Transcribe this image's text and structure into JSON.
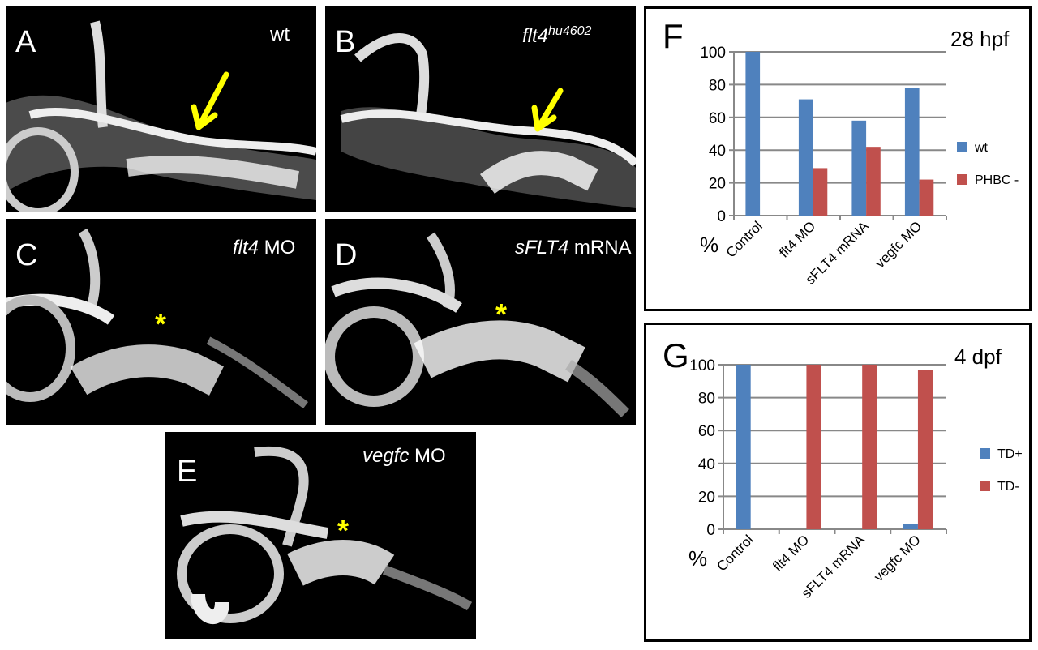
{
  "panels": {
    "A": {
      "letter": "A",
      "title": "wt"
    },
    "B": {
      "letter": "B",
      "title_main": "flt4",
      "title_sup": "hu4602"
    },
    "C": {
      "letter": "C",
      "title_ital": "flt4",
      "title_rest": " MO"
    },
    "D": {
      "letter": "D",
      "title_ital": "sFLT4",
      "title_rest": " mRNA"
    },
    "E": {
      "letter": "E",
      "title_ital": "vegfc",
      "title_rest": " MO"
    }
  },
  "markers": {
    "asterisk": "*"
  },
  "colors": {
    "blue": "#4F81BD",
    "red": "#C0504D",
    "arrow": "#FFFF00"
  },
  "chart_data": [
    {
      "type": "bar",
      "panel_letter": "F",
      "title": "28 hpf",
      "ylabel": "%",
      "ylim": [
        0,
        100
      ],
      "yticks": [
        0,
        20,
        40,
        60,
        80,
        100
      ],
      "categories": [
        "Control",
        "flt4 MO",
        "sFLT4 mRNA",
        "vegfc MO"
      ],
      "series": [
        {
          "name": "wt",
          "color": "#4F81BD",
          "values": [
            100,
            71,
            58,
            78
          ]
        },
        {
          "name": "PHBC -",
          "color": "#C0504D",
          "values": [
            0,
            29,
            42,
            22
          ]
        }
      ]
    },
    {
      "type": "bar",
      "panel_letter": "G",
      "title": "4 dpf",
      "ylabel": "%",
      "ylim": [
        0,
        100
      ],
      "yticks": [
        0,
        20,
        40,
        60,
        80,
        100
      ],
      "categories": [
        "Control",
        "flt4 MO",
        "sFLT4 mRNA",
        "vegfc MO"
      ],
      "series": [
        {
          "name": "TD+",
          "color": "#4F81BD",
          "values": [
            100,
            0,
            0,
            3
          ]
        },
        {
          "name": "TD-",
          "color": "#C0504D",
          "values": [
            0,
            100,
            100,
            97
          ]
        }
      ]
    }
  ]
}
